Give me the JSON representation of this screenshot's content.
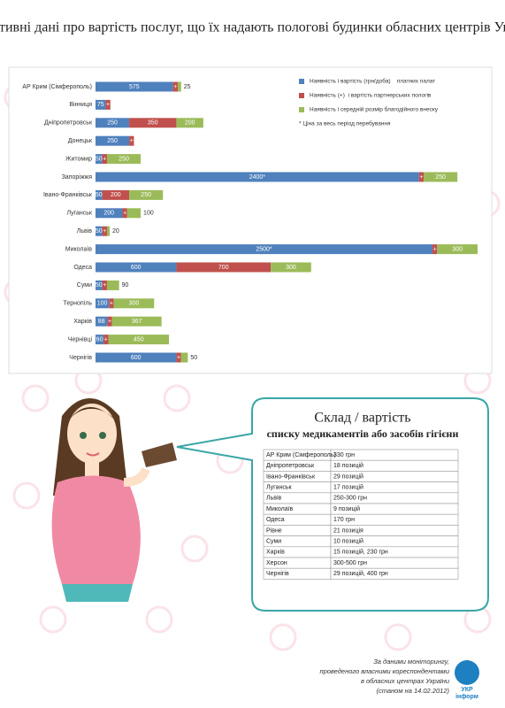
{
  "title": "Оперативні дані про вартість послуг, що їх надають пологові будинки обласних центрів України",
  "chart_data": {
    "type": "stacked-bar",
    "categories": [
      "АР Крим (Сімферополь)",
      "Вінниця",
      "Дніпропетровськ",
      "Донецьк",
      "Житомир",
      "Запоріжжя",
      "Івано-Франківськ",
      "Луганськ",
      "Львів",
      "Миколаїв",
      "Одеса",
      "Суми",
      "Тернопіль",
      "Харків",
      "Чернівці",
      "Чернігів"
    ],
    "series": [
      {
        "name": "Наявність і вартість (грн/доба)    платних палат",
        "color": "#4f81bd",
        "values": [
          575,
          75,
          250,
          250,
          50,
          2400,
          50,
          200,
          50,
          2500,
          600,
          50,
          100,
          88,
          60,
          600
        ],
        "value_labels": [
          "575",
          "75",
          "250",
          "250",
          "50",
          "2400*",
          "50",
          "200",
          "50",
          "2500*",
          "600",
          "50",
          "100",
          "88",
          "60",
          "600"
        ]
      },
      {
        "name": "Наявність (+)  і вартість партнерських пологів",
        "color": "#c0504d",
        "values": [
          35,
          35,
          350,
          35,
          35,
          35,
          200,
          35,
          35,
          35,
          700,
          35,
          35,
          35,
          35,
          35
        ],
        "value_labels": [
          "+",
          "+",
          "350",
          "+",
          "+",
          "+",
          "200",
          "+",
          "+",
          "+",
          "700",
          "+",
          "+",
          "+",
          "+",
          "+"
        ]
      },
      {
        "name": "Наявність і середній розмір благодійного внеску",
        "color": "#9bbb59",
        "values": [
          25,
          null,
          200,
          null,
          250,
          250,
          250,
          100,
          20,
          300,
          300,
          90,
          300,
          367,
          450,
          50
        ]
      }
    ],
    "annotation": "* Ціна за весь період перебування"
  },
  "table": {
    "title": "Склад / вартість",
    "subtitle": "списку медикаментів або засобів гігієни",
    "rows": [
      [
        "АР Крим (Сімферополь)",
        "330 грн"
      ],
      [
        "Дніпропетровськ",
        "18 позицій"
      ],
      [
        "Івано-Франківськ",
        "29 позицій"
      ],
      [
        "Луганськ",
        "17 позицій"
      ],
      [
        "Львів",
        "250-300 грн"
      ],
      [
        "Миколаїв",
        "9 позицій"
      ],
      [
        "Одеса",
        "170 грн"
      ],
      [
        "Рівне",
        "21 позиція"
      ],
      [
        "Суми",
        "10 позицій"
      ],
      [
        "Харків",
        "15 позицій, 230 грн"
      ],
      [
        "Херсон",
        "300-500 грн"
      ],
      [
        "Чернігів",
        "29 позицій, 400 грн"
      ]
    ]
  },
  "footer": {
    "source": [
      "За даними моніторингу,",
      "проведеного власними кореспондентами",
      "в обласних центрах України",
      "(станом на 14.02.2012)"
    ],
    "logo": [
      "УКР",
      "інформ"
    ]
  }
}
